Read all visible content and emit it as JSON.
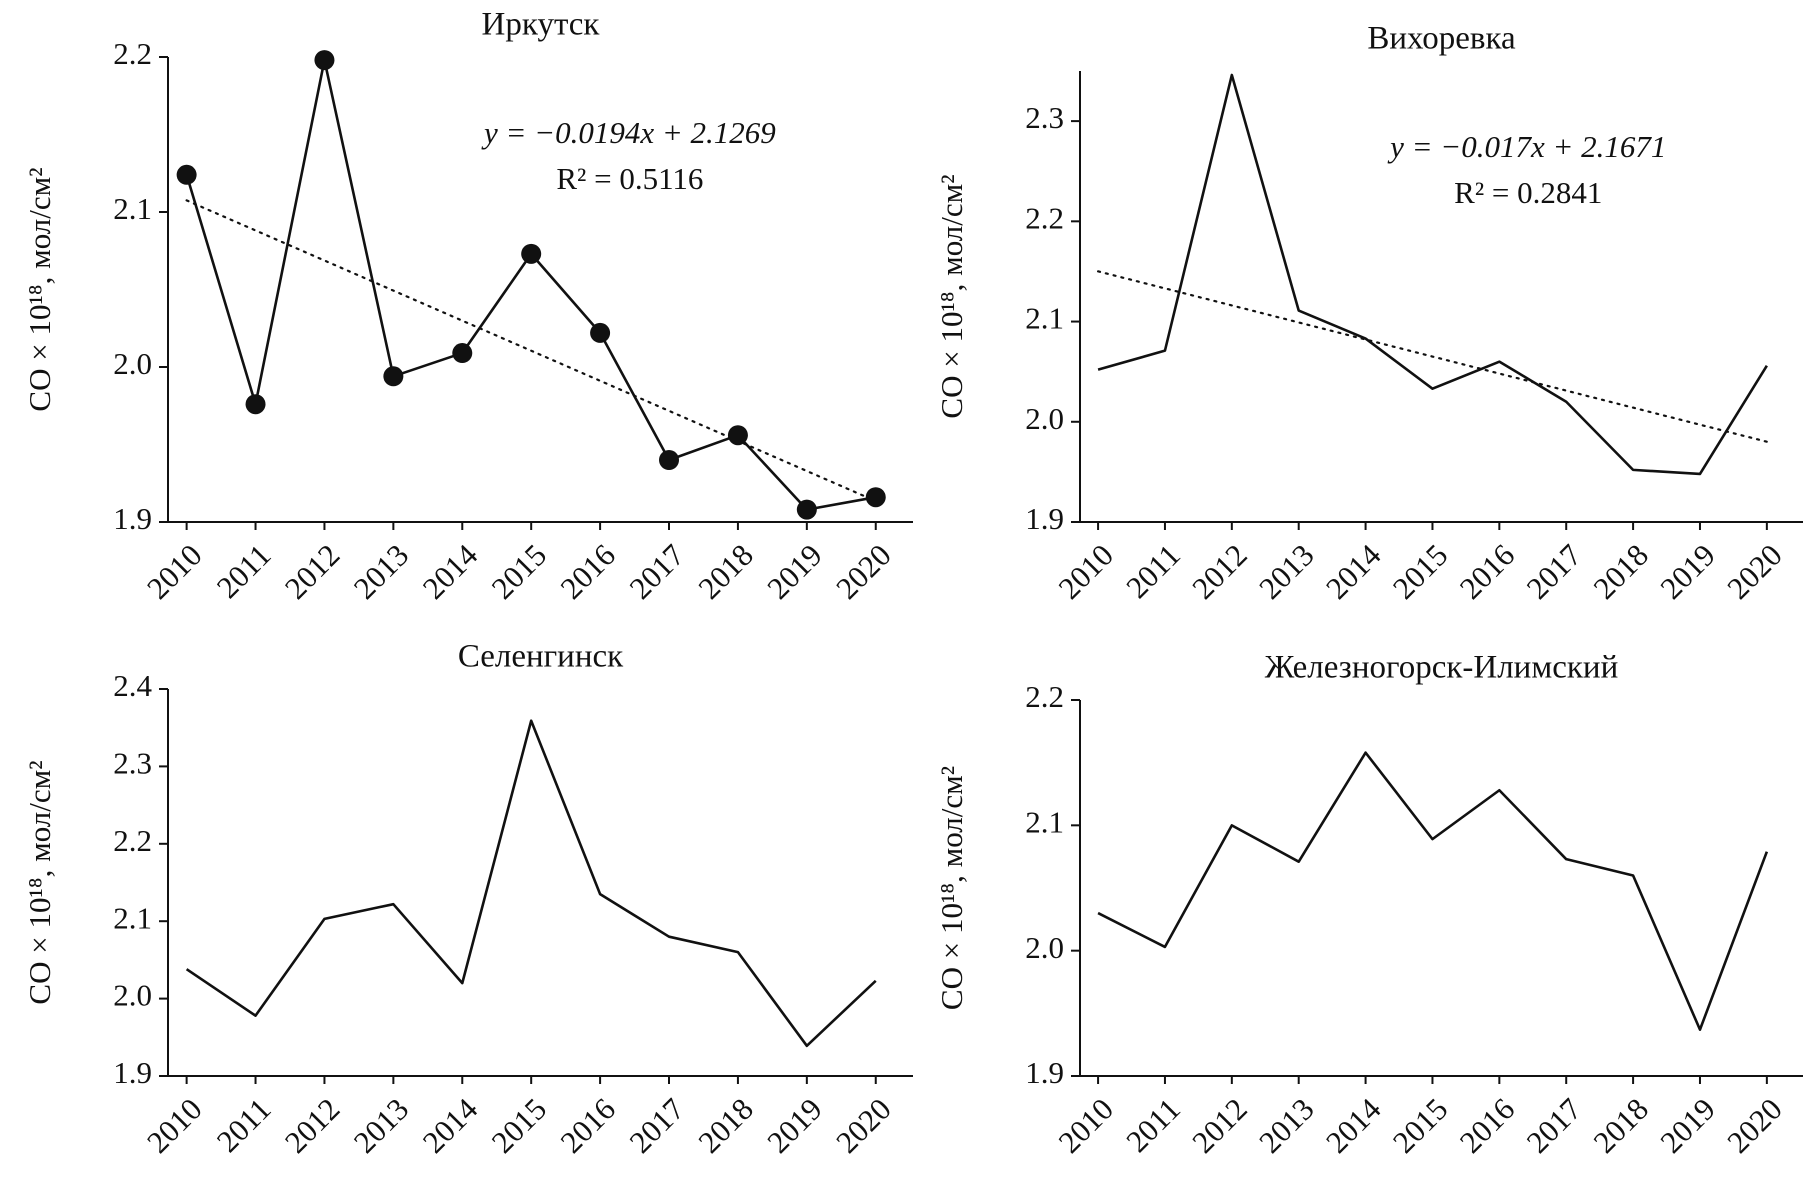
{
  "chart_data": [
    {
      "type": "line",
      "title": "Иркутск",
      "y_label": "CO × 10¹⁸, мол/см²",
      "categories": [
        "2010",
        "2011",
        "2012",
        "2013",
        "2014",
        "2015",
        "2016",
        "2017",
        "2018",
        "2019",
        "2020"
      ],
      "values": [
        2.124,
        1.976,
        2.198,
        1.994,
        2.009,
        2.073,
        2.022,
        1.94,
        1.956,
        1.908,
        1.916
      ],
      "color": "#111111",
      "markers": true,
      "ylim": [
        1.9,
        2.2
      ],
      "yticks": [
        1.9,
        {
          "value": 2,
          "label": "2.0"
        },
        2.1,
        2.2
      ],
      "trendline": {
        "slope": -0.0194,
        "intercept": 2.1269,
        "equation": "y = −0.0194x + 2.1269",
        "r2": "R² = 0.5116"
      }
    },
    {
      "type": "line",
      "title": "Вихоревка",
      "y_label": "CO × 10¹⁸, мол/см²",
      "categories": [
        "2010",
        "2011",
        "2012",
        "2013",
        "2014",
        "2015",
        "2016",
        "2017",
        "2018",
        "2019",
        "2020"
      ],
      "values": [
        2.052,
        2.071,
        2.346,
        2.111,
        2.083,
        2.033,
        2.06,
        2.02,
        1.952,
        1.948,
        2.056
      ],
      "color": "#111111",
      "markers": false,
      "ylim": [
        1.9,
        2.35
      ],
      "yticks": [
        1.9,
        {
          "value": 2,
          "label": "2.0"
        },
        2.1,
        2.2,
        2.3
      ],
      "trendline": {
        "slope": -0.017,
        "intercept": 2.1671,
        "equation": "y = −0.017x + 2.1671",
        "r2": "R² = 0.2841"
      }
    },
    {
      "type": "line",
      "title": "Селенгинск",
      "y_label": "CO × 10¹⁸, мол/см²",
      "categories": [
        "2010",
        "2011",
        "2012",
        "2013",
        "2014",
        "2015",
        "2016",
        "2017",
        "2018",
        "2019",
        "2020"
      ],
      "values": [
        2.038,
        1.978,
        2.103,
        2.122,
        2.02,
        2.359,
        2.135,
        2.08,
        2.06,
        1.939,
        2.023
      ],
      "color": "#111111",
      "markers": false,
      "ylim": [
        1.9,
        2.4
      ],
      "yticks": [
        1.9,
        {
          "value": 2,
          "label": "2.0"
        },
        2.1,
        2.2,
        2.3,
        2.4
      ]
    },
    {
      "type": "line",
      "title": "Железногорск-Илимский",
      "y_label": "CO × 10¹⁸, мол/см²",
      "categories": [
        "2010",
        "2011",
        "2012",
        "2013",
        "2014",
        "2015",
        "2016",
        "2017",
        "2018",
        "2019",
        "2020"
      ],
      "values": [
        2.03,
        2.003,
        2.1,
        2.071,
        2.158,
        2.089,
        2.128,
        2.073,
        2.06,
        1.937,
        2.079
      ],
      "color": "#111111",
      "markers": false,
      "ylim": [
        1.9,
        2.2
      ],
      "yticks": [
        1.9,
        {
          "value": 2,
          "label": "2.0"
        },
        2.1,
        2.2
      ]
    }
  ]
}
